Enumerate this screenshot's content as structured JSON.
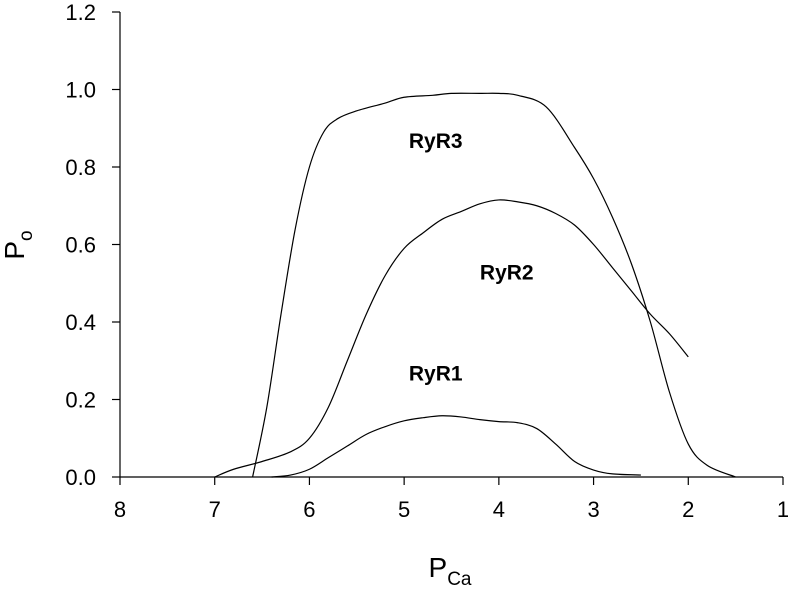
{
  "chart_data": {
    "type": "line",
    "xlabel": {
      "main": "P",
      "sub": "Ca"
    },
    "ylabel": {
      "main": "P",
      "sub": "o"
    },
    "xlim": [
      8,
      1
    ],
    "ylim": [
      0,
      1.2
    ],
    "x_ticks": [
      "8",
      "7",
      "6",
      "5",
      "4",
      "3",
      "2",
      "1"
    ],
    "y_ticks": [
      "0.0",
      "0.2",
      "0.4",
      "0.6",
      "0.8",
      "1.0",
      "1.2"
    ],
    "grid": false,
    "series": [
      {
        "name": "RyR3",
        "x": [
          6.6,
          6.45,
          6.3,
          6.15,
          6.0,
          5.85,
          5.7,
          5.5,
          5.2,
          5.0,
          4.7,
          4.5,
          4.2,
          4.0,
          3.8,
          3.5,
          3.2,
          3.0,
          2.8,
          2.6,
          2.4,
          2.2,
          2.0,
          1.8,
          1.5
        ],
        "y": [
          0.0,
          0.18,
          0.42,
          0.64,
          0.8,
          0.89,
          0.925,
          0.945,
          0.965,
          0.98,
          0.985,
          0.99,
          0.99,
          0.99,
          0.985,
          0.955,
          0.85,
          0.77,
          0.67,
          0.55,
          0.4,
          0.22,
          0.085,
          0.03,
          0.0
        ]
      },
      {
        "name": "RyR2",
        "x": [
          7.0,
          6.8,
          6.5,
          6.2,
          6.0,
          5.8,
          5.6,
          5.4,
          5.2,
          5.0,
          4.8,
          4.6,
          4.4,
          4.2,
          4.0,
          3.8,
          3.6,
          3.4,
          3.2,
          3.0,
          2.8,
          2.6,
          2.4,
          2.2,
          2.0
        ],
        "y": [
          0.0,
          0.02,
          0.04,
          0.065,
          0.1,
          0.18,
          0.3,
          0.42,
          0.52,
          0.59,
          0.63,
          0.665,
          0.685,
          0.705,
          0.715,
          0.71,
          0.7,
          0.68,
          0.65,
          0.6,
          0.54,
          0.48,
          0.42,
          0.37,
          0.31
        ]
      },
      {
        "name": "RyR1",
        "x": [
          6.4,
          6.2,
          6.0,
          5.8,
          5.6,
          5.4,
          5.2,
          5.0,
          4.8,
          4.6,
          4.4,
          4.2,
          4.0,
          3.8,
          3.6,
          3.4,
          3.2,
          3.0,
          2.8,
          2.5
        ],
        "y": [
          0.0,
          0.005,
          0.02,
          0.05,
          0.08,
          0.11,
          0.13,
          0.145,
          0.153,
          0.158,
          0.155,
          0.148,
          0.143,
          0.14,
          0.125,
          0.085,
          0.04,
          0.018,
          0.008,
          0.005
        ]
      }
    ],
    "annotations": [
      {
        "text": "RyR3",
        "x": 4.95,
        "y": 0.87
      },
      {
        "text": "RyR2",
        "x": 4.2,
        "y": 0.53
      },
      {
        "text": "RyR1",
        "x": 4.95,
        "y": 0.27
      }
    ]
  }
}
